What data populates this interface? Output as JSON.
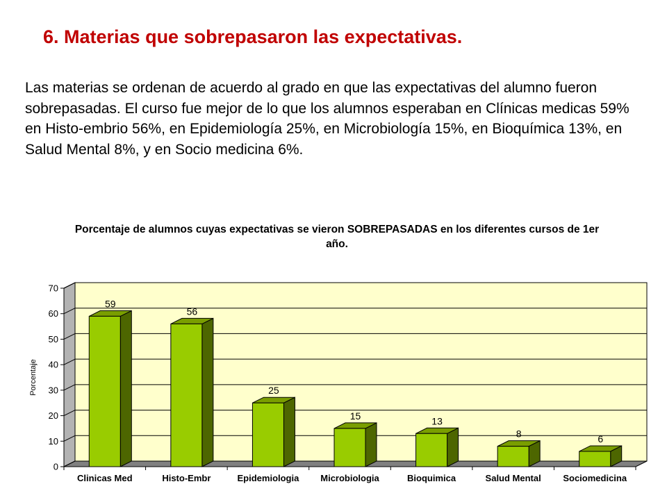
{
  "slide": {
    "title": "6. Materias que sobrepasaron las expectativas.",
    "body": "Las materias se ordenan de acuerdo al grado en que las expectativas del alumno fueron sobrepasadas.  El curso fue mejor de lo que los alumnos esperaban en Clínicas medicas 59% en Histo-embrio 56%, en Epidemiología 25%, en Microbiología 15%, en Bioquímica 13%, en Salud Mental 8%, y en Socio medicina 6%."
  },
  "chart_data": {
    "type": "bar",
    "title": "Porcentaje de alumnos cuyas expectativas se vieron SOBREPASADAS en los diferentes cursos de 1er año.",
    "xlabel": "",
    "ylabel": "Porcentaje",
    "categories": [
      "Clinicas Med",
      "Histo-Embr",
      "Epidemiologia",
      "Microbiologia",
      "Bioquimica",
      "Salud Mental",
      "Sociomedicina"
    ],
    "values": [
      59,
      56,
      25,
      15,
      13,
      8,
      6
    ],
    "data_labels": [
      "59",
      "56",
      "25",
      "15",
      "13",
      "8",
      "6"
    ],
    "yticks": [
      "0",
      "10",
      "20",
      "30",
      "40",
      "50",
      "60",
      "70"
    ],
    "ylim": [
      0,
      70
    ],
    "grid": true,
    "legend": "none",
    "style": "3d-column",
    "colors": {
      "bar_front": "#99cc00",
      "bar_side": "#4d6600",
      "bar_top": "#7a9e00",
      "plot_background": "#ffffcc",
      "floor": "#808080",
      "title_text": "#c00000"
    }
  }
}
